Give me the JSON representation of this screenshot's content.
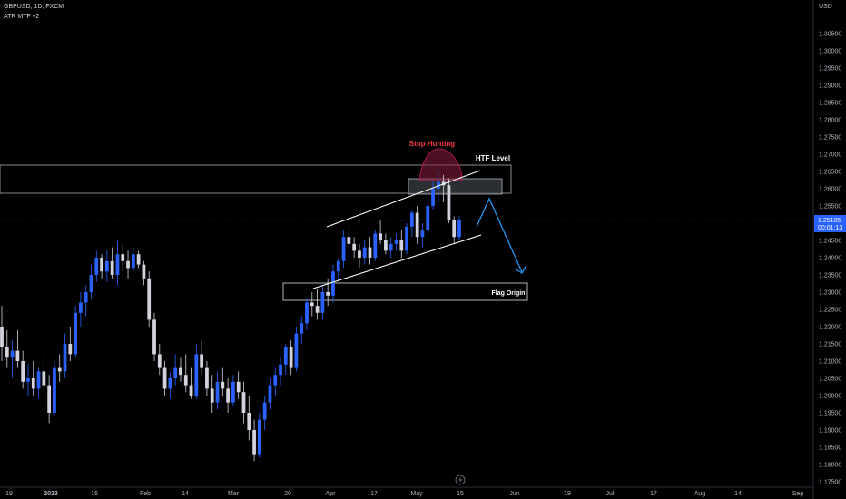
{
  "header": {
    "symbol_line": "GBPUSD, 1D, FXCM",
    "indicator_line": "ATR MTF v2"
  },
  "price_scale": {
    "currency": "USD",
    "current_price": "1.25105",
    "countdown": "00:01:13",
    "labels": [
      "1.30500",
      "1.30000",
      "1.29500",
      "1.29000",
      "1.28500",
      "1.28000",
      "1.27500",
      "1.27000",
      "1.26500",
      "1.26000",
      "1.25500",
      "1.25000",
      "1.24500",
      "1.24000",
      "1.23500",
      "1.23000",
      "1.22500",
      "1.22000",
      "1.21500",
      "1.21000",
      "1.20500",
      "1.20000",
      "1.19500",
      "1.19000",
      "1.18500",
      "1.18000",
      "1.17500"
    ]
  },
  "time_scale": {
    "labels": [
      "19",
      "2023",
      "16",
      "Feb",
      "14",
      "Mar",
      "20",
      "Apr",
      "17",
      "May",
      "15",
      "Jun",
      "19",
      "Jul",
      "17",
      "Aug",
      "14",
      "Sep"
    ]
  },
  "annotations": {
    "stop_hunting": "Stop Hunting",
    "htf_level": "HTF Level",
    "flag_origin": "Flag Origin"
  },
  "colors": {
    "bull": "#2962ff",
    "bear": "#d1d4dc",
    "annotation_red": "#f23645",
    "projection": "#2196f3",
    "background": "#000000"
  },
  "icons": {
    "replay": "lightning-icon"
  },
  "chart_data": {
    "type": "candlestick",
    "symbol": "GBPUSD",
    "timeframe": "1D",
    "ylim": [
      1.173,
      1.313
    ],
    "candles_ohlc": [
      [
        1.22,
        1.226,
        1.21,
        1.214
      ],
      [
        1.214,
        1.219,
        1.208,
        1.211
      ],
      [
        1.211,
        1.216,
        1.205,
        1.213
      ],
      [
        1.213,
        1.219,
        1.208,
        1.21
      ],
      [
        1.21,
        1.213,
        1.202,
        1.204
      ],
      [
        1.204,
        1.209,
        1.2,
        1.205
      ],
      [
        1.205,
        1.21,
        1.2,
        1.202
      ],
      [
        1.202,
        1.208,
        1.199,
        1.207
      ],
      [
        1.207,
        1.212,
        1.201,
        1.203
      ],
      [
        1.203,
        1.206,
        1.192,
        1.195
      ],
      [
        1.195,
        1.21,
        1.194,
        1.208
      ],
      [
        1.208,
        1.212,
        1.204,
        1.207
      ],
      [
        1.207,
        1.218,
        1.205,
        1.215
      ],
      [
        1.215,
        1.22,
        1.21,
        1.212
      ],
      [
        1.212,
        1.226,
        1.211,
        1.224
      ],
      [
        1.224,
        1.23,
        1.22,
        1.227
      ],
      [
        1.227,
        1.232,
        1.223,
        1.23
      ],
      [
        1.23,
        1.238,
        1.228,
        1.235
      ],
      [
        1.235,
        1.242,
        1.233,
        1.24
      ],
      [
        1.24,
        1.241,
        1.234,
        1.236
      ],
      [
        1.236,
        1.242,
        1.233,
        1.239
      ],
      [
        1.239,
        1.243,
        1.234,
        1.235
      ],
      [
        1.235,
        1.245,
        1.232,
        1.241
      ],
      [
        1.241,
        1.244,
        1.236,
        1.239
      ],
      [
        1.239,
        1.242,
        1.234,
        1.237
      ],
      [
        1.237,
        1.243,
        1.236,
        1.241
      ],
      [
        1.241,
        1.242,
        1.237,
        1.238
      ],
      [
        1.238,
        1.239,
        1.232,
        1.234
      ],
      [
        1.234,
        1.236,
        1.22,
        1.222
      ],
      [
        1.222,
        1.224,
        1.21,
        1.212
      ],
      [
        1.212,
        1.215,
        1.206,
        1.208
      ],
      [
        1.208,
        1.21,
        1.2,
        1.202
      ],
      [
        1.202,
        1.207,
        1.199,
        1.205
      ],
      [
        1.205,
        1.212,
        1.203,
        1.208
      ],
      [
        1.208,
        1.211,
        1.204,
        1.206
      ],
      [
        1.206,
        1.212,
        1.201,
        1.203
      ],
      [
        1.203,
        1.208,
        1.199,
        1.2
      ],
      [
        1.2,
        1.215,
        1.199,
        1.212
      ],
      [
        1.212,
        1.216,
        1.206,
        1.208
      ],
      [
        1.208,
        1.21,
        1.2,
        1.202
      ],
      [
        1.202,
        1.206,
        1.195,
        1.198
      ],
      [
        1.198,
        1.207,
        1.196,
        1.204
      ],
      [
        1.204,
        1.208,
        1.2,
        1.202
      ],
      [
        1.202,
        1.205,
        1.195,
        1.198
      ],
      [
        1.198,
        1.206,
        1.197,
        1.204
      ],
      [
        1.204,
        1.207,
        1.199,
        1.201
      ],
      [
        1.201,
        1.204,
        1.192,
        1.195
      ],
      [
        1.195,
        1.2,
        1.187,
        1.19
      ],
      [
        1.19,
        1.193,
        1.181,
        1.183
      ],
      [
        1.183,
        1.195,
        1.182,
        1.193
      ],
      [
        1.193,
        1.2,
        1.19,
        1.198
      ],
      [
        1.198,
        1.205,
        1.196,
        1.203
      ],
      [
        1.203,
        1.208,
        1.2,
        1.206
      ],
      [
        1.206,
        1.211,
        1.203,
        1.209
      ],
      [
        1.209,
        1.215,
        1.206,
        1.214
      ],
      [
        1.214,
        1.216,
        1.206,
        1.208
      ],
      [
        1.208,
        1.22,
        1.207,
        1.218
      ],
      [
        1.218,
        1.223,
        1.215,
        1.221
      ],
      [
        1.221,
        1.228,
        1.219,
        1.227
      ],
      [
        1.227,
        1.23,
        1.223,
        1.226
      ],
      [
        1.226,
        1.231,
        1.222,
        1.224
      ],
      [
        1.224,
        1.232,
        1.222,
        1.23
      ],
      [
        1.23,
        1.234,
        1.226,
        1.229
      ],
      [
        1.229,
        1.238,
        1.227,
        1.236
      ],
      [
        1.236,
        1.24,
        1.233,
        1.239
      ],
      [
        1.239,
        1.248,
        1.237,
        1.246
      ],
      [
        1.246,
        1.25,
        1.242,
        1.244
      ],
      [
        1.244,
        1.246,
        1.24,
        1.242
      ],
      [
        1.242,
        1.244,
        1.237,
        1.24
      ],
      [
        1.24,
        1.245,
        1.238,
        1.243
      ],
      [
        1.243,
        1.246,
        1.238,
        1.24
      ],
      [
        1.24,
        1.248,
        1.239,
        1.247
      ],
      [
        1.247,
        1.251,
        1.244,
        1.245
      ],
      [
        1.245,
        1.247,
        1.241,
        1.242
      ],
      [
        1.242,
        1.246,
        1.24,
        1.244
      ],
      [
        1.244,
        1.247,
        1.242,
        1.245
      ],
      [
        1.245,
        1.248,
        1.24,
        1.242
      ],
      [
        1.242,
        1.25,
        1.241,
        1.249
      ],
      [
        1.249,
        1.254,
        1.246,
        1.253
      ],
      [
        1.253,
        1.255,
        1.244,
        1.246
      ],
      [
        1.246,
        1.25,
        1.243,
        1.248
      ],
      [
        1.248,
        1.256,
        1.247,
        1.255
      ],
      [
        1.255,
        1.262,
        1.254,
        1.26
      ],
      [
        1.26,
        1.265,
        1.256,
        1.262
      ],
      [
        1.262,
        1.264,
        1.256,
        1.261
      ],
      [
        1.261,
        1.263,
        1.25,
        1.251
      ],
      [
        1.251,
        1.252,
        1.244,
        1.246
      ],
      [
        1.246,
        1.252,
        1.245,
        1.251
      ]
    ],
    "annotations": [
      {
        "label": "HTF Level",
        "type": "zone",
        "price_range": [
          1.259,
          1.2675
        ]
      },
      {
        "label": "Flag Origin",
        "type": "zone",
        "price_range": [
          1.228,
          1.233
        ]
      },
      {
        "label": "Stop Hunting",
        "type": "highlight",
        "price_range": [
          1.262,
          1.27
        ]
      }
    ]
  }
}
